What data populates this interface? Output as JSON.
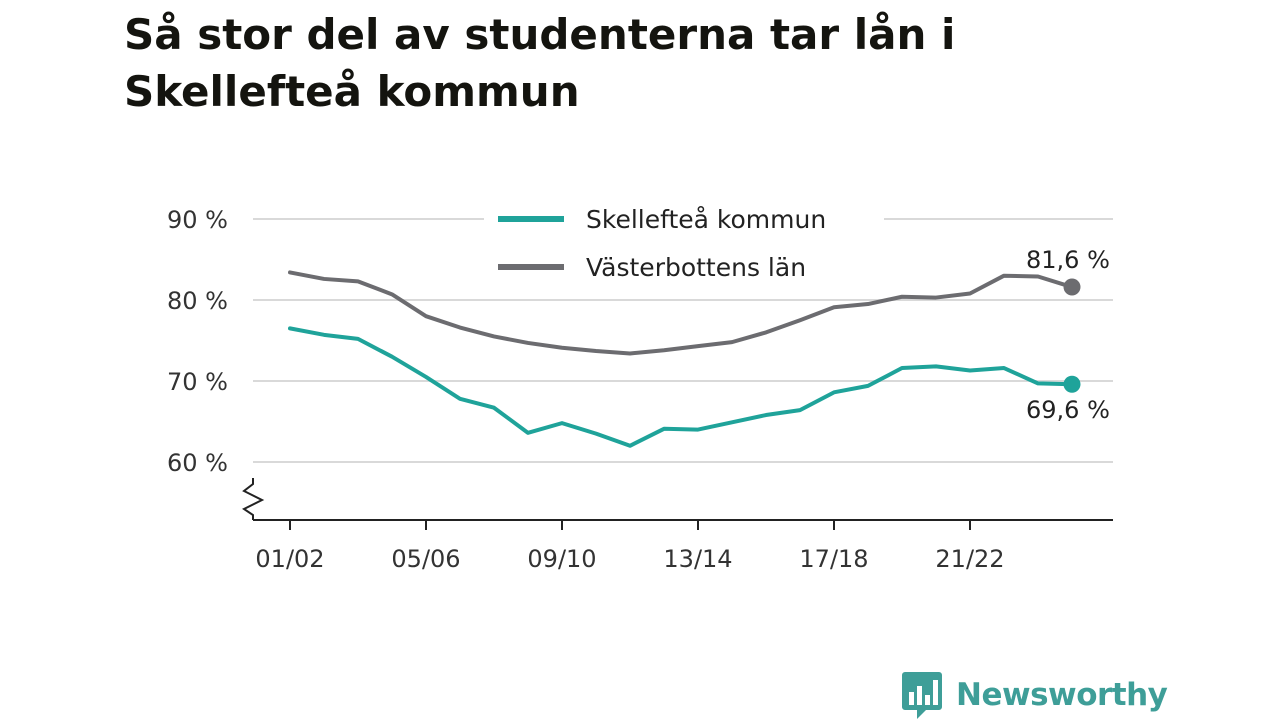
{
  "brand": {
    "name": "Newsworthy",
    "logo_icon": "bar-chart-speech-bubble-icon",
    "color": "#3e9e98"
  },
  "chart_data": {
    "type": "line",
    "title": "Så stor del av studenterna tar lån i Skellefteå kommun",
    "xlabel": "",
    "ylabel": "",
    "x": [
      "01/02",
      "02/03",
      "03/04",
      "04/05",
      "05/06",
      "06/07",
      "07/08",
      "08/09",
      "09/10",
      "10/11",
      "11/12",
      "12/13",
      "13/14",
      "14/15",
      "15/16",
      "16/17",
      "17/18",
      "18/19",
      "19/20",
      "20/21",
      "21/22",
      "22/23",
      "23/24",
      "24/25"
    ],
    "x_tick_labels": [
      "01/02",
      "05/06",
      "09/10",
      "13/14",
      "17/18",
      "21/22"
    ],
    "y_ticks": [
      60,
      70,
      80,
      90
    ],
    "y_tick_labels": [
      "60 %",
      "70 %",
      "80 %",
      "90 %"
    ],
    "ylim": [
      55,
      90
    ],
    "axis_break": true,
    "grid": true,
    "legend_position": "top",
    "series": [
      {
        "name": "Skellefteå kommun",
        "color": "#1fa39a",
        "values": [
          76.5,
          75.7,
          75.2,
          73.0,
          70.5,
          67.8,
          66.7,
          63.6,
          64.8,
          63.5,
          62.0,
          64.1,
          64.0,
          64.9,
          65.8,
          66.4,
          68.6,
          69.4,
          71.6,
          71.8,
          71.3,
          71.6,
          69.7,
          69.6
        ],
        "end_label": "69,6 %"
      },
      {
        "name": "Västerbottens län",
        "color": "#6c6c70",
        "values": [
          83.4,
          82.6,
          82.3,
          80.7,
          78.0,
          76.6,
          75.5,
          74.7,
          74.1,
          73.7,
          73.4,
          73.8,
          74.3,
          74.8,
          76.0,
          77.5,
          79.1,
          79.5,
          80.4,
          80.3,
          80.8,
          83.0,
          82.9,
          81.6
        ],
        "end_label": "81,6 %"
      }
    ]
  }
}
